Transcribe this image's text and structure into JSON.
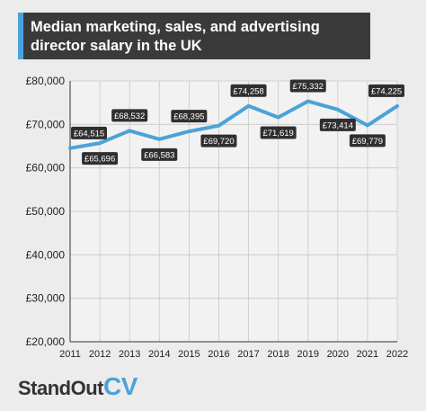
{
  "header": {
    "title": "Median marketing, sales, and advertising director salary in the UK"
  },
  "logo": {
    "part1": "StandOut",
    "part2": "CV"
  },
  "colors": {
    "line": "#4aa3d8",
    "label_bg": "#2f2f2f",
    "title_bg": "#3a3a3a",
    "accent": "#4aa3d8"
  },
  "chart_data": {
    "type": "line",
    "title": "Median marketing, sales, and advertising director salary in the UK",
    "x": [
      "2011",
      "2012",
      "2013",
      "2014",
      "2015",
      "2016",
      "2017",
      "2018",
      "2019",
      "2020",
      "2021",
      "2022"
    ],
    "series": [
      {
        "values": [
          64515,
          65696,
          68532,
          66583,
          68395,
          69720,
          74258,
          71619,
          75332,
          73414,
          69779,
          74225
        ],
        "labels": [
          "£64,515",
          "£65,696",
          "£68,532",
          "£66,583",
          "£68,395",
          "£69,720",
          "£74,258",
          "£71,619",
          "£75,332",
          "£73,414",
          "£69,779",
          "£74,225"
        ],
        "label_side": [
          "above",
          "below",
          "above",
          "below",
          "above",
          "below",
          "above",
          "below",
          "above",
          "below",
          "below",
          "above"
        ]
      }
    ],
    "ylim": [
      20000,
      80000
    ],
    "yticks": [
      20000,
      30000,
      40000,
      50000,
      60000,
      70000,
      80000
    ],
    "ytick_labels": [
      "£20,000",
      "£30,000",
      "£40,000",
      "£50,000",
      "£60,000",
      "£70,000",
      "£80,000"
    ],
    "grid": true,
    "xlabel": "",
    "ylabel": ""
  }
}
